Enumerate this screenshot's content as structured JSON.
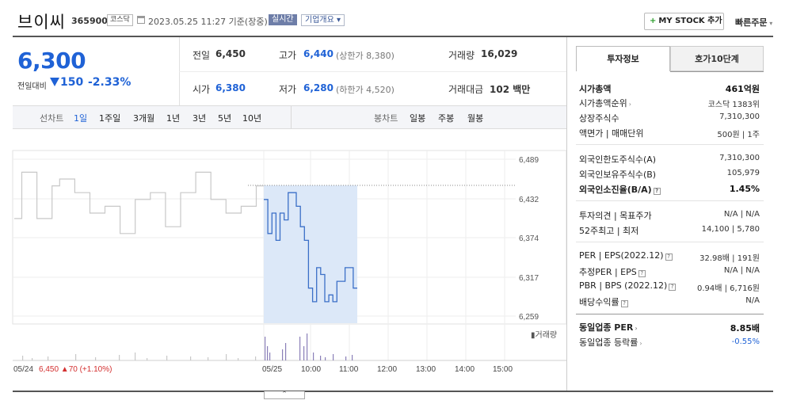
{
  "header": {
    "name": "브이씨",
    "code": "365900",
    "market": "코스닥",
    "datetime": "2023.05.25 11:27 기준(장중)",
    "realtime": "실시간",
    "company": "기업개요",
    "my_stock": "MY STOCK 추가",
    "quick_order": "빠른주문"
  },
  "price": {
    "current": "6,300",
    "vs_label": "전일대비",
    "change": "150",
    "rate": "-2.33%"
  },
  "summary": {
    "prev_label": "전일",
    "prev": "6,450",
    "high_label": "고가",
    "high": "6,440",
    "upper_limit": "(상한가 8,380)",
    "volume_label": "거래량",
    "volume": "16,029",
    "open_label": "시가",
    "open": "6,380",
    "low_label": "저가",
    "low": "6,280",
    "lower_limit": "(하한가 4,520)",
    "amount_label": "거래대금",
    "amount": "102 백만"
  },
  "toolbar": {
    "line_label": "선차트",
    "periods": [
      "1일",
      "1주일",
      "3개월",
      "1년",
      "3년",
      "5년",
      "10년"
    ],
    "candle_label": "봉차트",
    "candles": [
      "일봉",
      "주봉",
      "월봉"
    ]
  },
  "tabs": {
    "invest": "투자정보",
    "quote": "호가10단계"
  },
  "info": {
    "mcap_label": "시가총액",
    "mcap": "461억원",
    "mcap_rank_label": "시가총액순위",
    "mcap_rank": "코스닥 1383위",
    "shares_label": "상장주식수",
    "shares": "7,310,300",
    "par_label": "액면가 | 매매단위",
    "par": "500원 | 1주",
    "foreign_limit_label": "외국인한도주식수(A)",
    "foreign_limit": "7,310,300",
    "foreign_hold_label": "외국인보유주식수(B)",
    "foreign_hold": "105,979",
    "foreign_ratio_label": "외국인소진율(B/A)",
    "foreign_ratio": "1.45%",
    "opinion_label": "투자의견 | 목표주가",
    "opinion": "N/A | N/A",
    "w52_label": "52주최고 | 최저",
    "w52": "14,100 | 5,780",
    "per_label": "PER | EPS(2022.12)",
    "per": "32.98배 | 191원",
    "est_label": "추정PER | EPS",
    "est": "N/A | N/A",
    "pbr_label": "PBR | BPS (2022.12)",
    "pbr": "0.94배 | 6,716원",
    "div_label": "배당수익률",
    "div": "N/A",
    "ind_per_label": "동일업종 PER",
    "ind_per": "8.85배",
    "ind_rate_label": "동일업종 등락률",
    "ind_rate": "-0.55%"
  },
  "chart_data": {
    "type": "line",
    "y_ticks": [
      "6,489",
      "6,432",
      "6,374",
      "6,317",
      "6,259"
    ],
    "x_ticks": [
      "05/24",
      "05/25",
      "10:00",
      "11:00",
      "12:00",
      "13:00",
      "14:00",
      "15:00"
    ],
    "prev_day_note": "6,450",
    "prev_day_change": "▲70 (+1.10%)",
    "volume_label": "거래량",
    "ylim": [
      6259,
      6489
    ],
    "prev_close": 6450,
    "prev_day_series": [
      6402,
      6470,
      6470,
      6402,
      6402,
      6450,
      6460,
      6460,
      6440,
      6440,
      6410,
      6410,
      6420,
      6420,
      6380,
      6380,
      6430,
      6430,
      6440,
      6440,
      6390,
      6390,
      6440,
      6440,
      6470,
      6470,
      6430,
      6430,
      6410,
      6410,
      6420,
      6420,
      6450,
      6450
    ],
    "today_series": [
      6430,
      6380,
      6410,
      6370,
      6410,
      6400,
      6440,
      6440,
      6420,
      6390,
      6370,
      6300,
      6280,
      6330,
      6320,
      6280,
      6290,
      6280,
      6310,
      6310,
      6330,
      6330,
      6300,
      6300
    ],
    "colors": {
      "prev": "#c8c8c8",
      "today": "#3b6fc7",
      "highlight": "#dce8f8",
      "up": "#d32f2f",
      "blue": "#1f62d6"
    }
  }
}
